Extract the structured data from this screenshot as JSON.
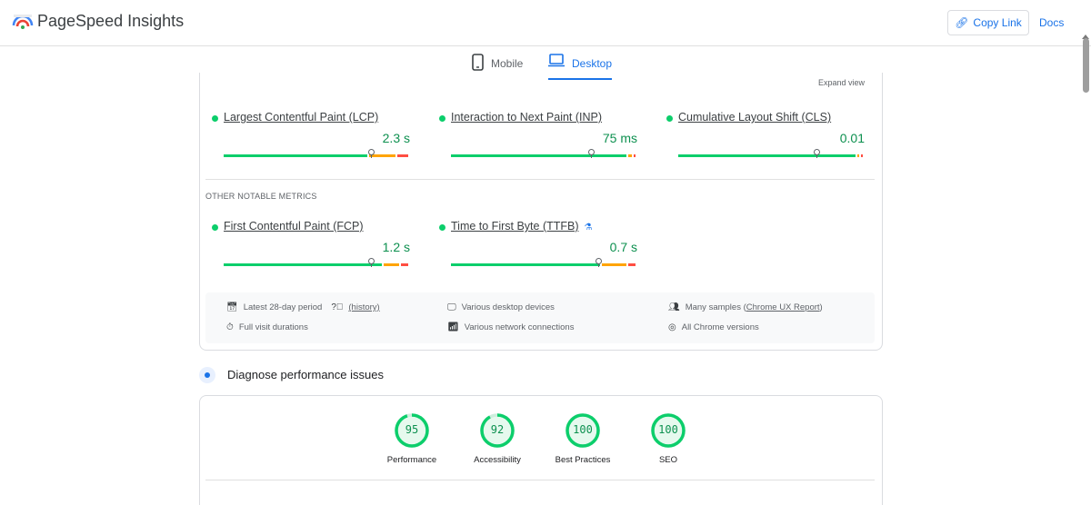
{
  "header": {
    "title": "PageSpeed Insights",
    "copy_link": "Copy Link",
    "docs": "Docs"
  },
  "tabs": [
    {
      "label": "Mobile",
      "active": false
    },
    {
      "label": "Desktop",
      "active": true
    }
  ],
  "expand_view": "Expand view",
  "core_metrics": [
    {
      "name": "Largest Contentful Paint (LCP)",
      "value": "2.3 s",
      "status": "good",
      "marker": 0.79,
      "split": [
        0.78,
        0.15,
        0.07
      ]
    },
    {
      "name": "Interaction to Next Paint (INP)",
      "value": "75 ms",
      "status": "good",
      "marker": 0.75,
      "split": [
        0.95,
        0.03,
        0.02
      ]
    },
    {
      "name": "Cumulative Layout Shift (CLS)",
      "value": "0.01",
      "status": "good",
      "marker": 0.74,
      "split": [
        0.96,
        0.02,
        0.02
      ]
    }
  ],
  "other_label": "OTHER NOTABLE METRICS",
  "other_metrics": [
    {
      "name": "First Contentful Paint (FCP)",
      "value": "1.2 s",
      "status": "good",
      "marker": 0.79,
      "split": [
        0.86,
        0.09,
        0.05
      ]
    },
    {
      "name": "Time to First Byte (TTFB)",
      "value": "0.7 s",
      "status": "good",
      "marker": 0.79,
      "split": [
        0.81,
        0.14,
        0.05
      ],
      "experimental": true
    }
  ],
  "info": {
    "period": "Latest 28-day period",
    "history": "(history)",
    "durations": "Full visit durations",
    "devices": "Various desktop devices",
    "network": "Various network connections",
    "samples_prefix": "Many samples (",
    "samples_link": "Chrome UX Report",
    "samples_suffix": ")",
    "chrome": "All Chrome versions"
  },
  "diagnose": {
    "title": "Diagnose performance issues"
  },
  "scores": [
    {
      "value": "95",
      "label": "Performance",
      "fraction": 0.95
    },
    {
      "value": "92",
      "label": "Accessibility",
      "fraction": 0.92
    },
    {
      "value": "100",
      "label": "Best Practices",
      "fraction": 1.0
    },
    {
      "value": "100",
      "label": "SEO",
      "fraction": 1.0
    }
  ],
  "colors": {
    "good": "#0cce6b",
    "average": "#ffa400",
    "poor": "#ff4e42",
    "accent": "#1a73e8"
  }
}
